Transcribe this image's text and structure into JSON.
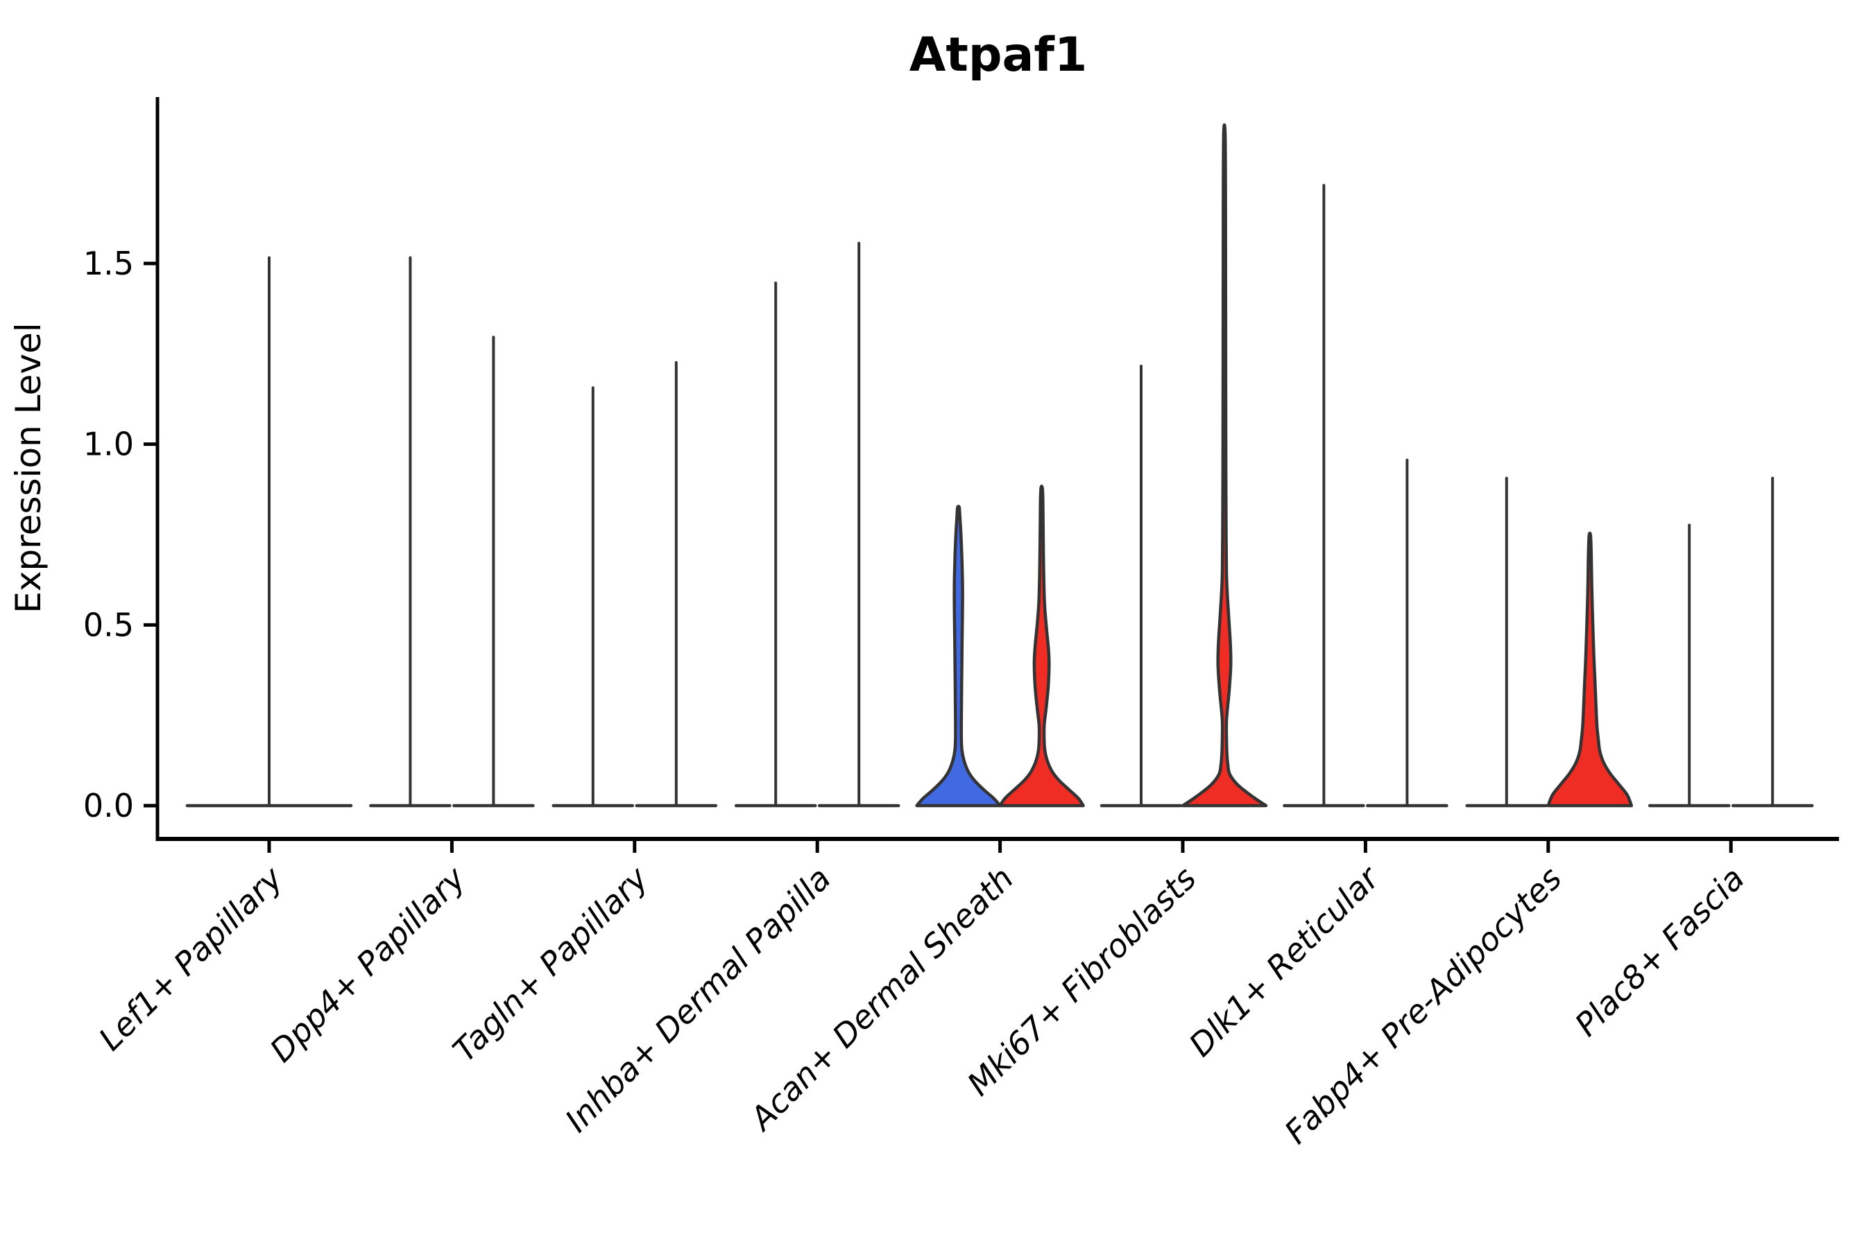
{
  "chart_data": {
    "type": "violin",
    "title": "Atpaf1",
    "xlabel": "",
    "ylabel": "Expression Level",
    "ylim": [
      -0.09,
      1.96
    ],
    "yticks": [
      0.0,
      0.5,
      1.0,
      1.5
    ],
    "ytick_labels": [
      "0.0",
      "0.5",
      "1.0",
      "1.5"
    ],
    "grid": false,
    "legend": null,
    "split_groups": [
      {
        "name": "group-blue",
        "color": "#4169E1"
      },
      {
        "name": "group-red",
        "color": "#EF2D24"
      }
    ],
    "colors": {
      "blue": "#4169E1",
      "red": "#EF2D24",
      "outline": "#333333",
      "axis": "#000000",
      "background": "#FFFFFF"
    },
    "note": "Most violins are degenerate (nearly all cells at 0 expression): a flat base line at 0 plus a thin vertical spike to the max expression value.",
    "categories": [
      {
        "label": "Lef1+ Papillary",
        "violins": [
          {
            "group": "single",
            "style": "line",
            "max": 1.52
          }
        ]
      },
      {
        "label": "Dpp4+ Papillary",
        "violins": [
          {
            "group": "blue",
            "style": "line",
            "max": 1.52
          },
          {
            "group": "red",
            "style": "line",
            "max": 1.3
          }
        ]
      },
      {
        "label": "Tagln+ Papillary",
        "violins": [
          {
            "group": "blue",
            "style": "line",
            "max": 1.16
          },
          {
            "group": "red",
            "style": "line",
            "max": 1.23
          }
        ]
      },
      {
        "label": "Inhba+ Dermal Papilla",
        "violins": [
          {
            "group": "blue",
            "style": "line",
            "max": 1.45
          },
          {
            "group": "red",
            "style": "line",
            "max": 1.56
          }
        ]
      },
      {
        "label": "Acan+ Dermal Sheath",
        "violins": [
          {
            "group": "blue",
            "style": "violin",
            "max": 0.82,
            "profile": [
              [
                0.825,
                0.02
              ],
              [
                0.8,
                0.035
              ],
              [
                0.74,
                0.065
              ],
              [
                0.66,
                0.09
              ],
              [
                0.585,
                0.1
              ],
              [
                0.47,
                0.09
              ],
              [
                0.394,
                0.083
              ],
              [
                0.3,
                0.075
              ],
              [
                0.235,
                0.07
              ],
              [
                0.19,
                0.07
              ],
              [
                0.155,
                0.083
              ],
              [
                0.125,
                0.133
              ],
              [
                0.095,
                0.233
              ],
              [
                0.07,
                0.383
              ],
              [
                0.045,
                0.6
              ],
              [
                0.02,
                0.85
              ],
              [
                0.0,
                1.0
              ]
            ]
          },
          {
            "group": "red",
            "style": "violin",
            "max": 0.88,
            "profile": [
              [
                0.879,
                0.016
              ],
              [
                0.84,
                0.03
              ],
              [
                0.76,
                0.037
              ],
              [
                0.66,
                0.047
              ],
              [
                0.565,
                0.067
              ],
              [
                0.5,
                0.108
              ],
              [
                0.44,
                0.158
              ],
              [
                0.394,
                0.178
              ],
              [
                0.33,
                0.158
              ],
              [
                0.27,
                0.108
              ],
              [
                0.225,
                0.063
              ],
              [
                0.19,
                0.058
              ],
              [
                0.155,
                0.075
              ],
              [
                0.125,
                0.133
              ],
              [
                0.095,
                0.25
              ],
              [
                0.07,
                0.417
              ],
              [
                0.045,
                0.65
              ],
              [
                0.02,
                0.883
              ],
              [
                0.0,
                1.0
              ]
            ]
          }
        ]
      },
      {
        "label": "Mki67+ Fibroblasts",
        "violins": [
          {
            "group": "blue",
            "style": "line",
            "max": 1.22
          },
          {
            "group": "red",
            "style": "violin",
            "max": 1.86,
            "profile": [
              [
                1.863,
                0.016
              ],
              [
                1.7,
                0.027
              ],
              [
                1.4,
                0.03
              ],
              [
                1.1,
                0.033
              ],
              [
                0.9,
                0.037
              ],
              [
                0.75,
                0.042
              ],
              [
                0.645,
                0.05
              ],
              [
                0.575,
                0.075
              ],
              [
                0.5,
                0.117
              ],
              [
                0.44,
                0.147
              ],
              [
                0.387,
                0.153
              ],
              [
                0.32,
                0.117
              ],
              [
                0.27,
                0.075
              ],
              [
                0.234,
                0.05
              ],
              [
                0.19,
                0.05
              ],
              [
                0.15,
                0.058
              ],
              [
                0.113,
                0.083
              ],
              [
                0.086,
                0.133
              ],
              [
                0.056,
                0.333
              ],
              [
                0.023,
                0.7
              ],
              [
                0.0,
                1.0
              ]
            ]
          }
        ]
      },
      {
        "label": "Dlk1+ Reticular",
        "violins": [
          {
            "group": "blue",
            "style": "line",
            "max": 1.72
          },
          {
            "group": "red",
            "style": "line",
            "max": 0.96
          }
        ]
      },
      {
        "label": "Fabp4+ Pre-Adipocytes",
        "violins": [
          {
            "group": "blue",
            "style": "line",
            "max": 0.91
          },
          {
            "group": "red",
            "style": "violin",
            "max": 0.75,
            "profile": [
              [
                0.748,
                0.017
              ],
              [
                0.7,
                0.034
              ],
              [
                0.6,
                0.048
              ],
              [
                0.514,
                0.069
              ],
              [
                0.42,
                0.095
              ],
              [
                0.35,
                0.121
              ],
              [
                0.28,
                0.147
              ],
              [
                0.22,
                0.172
              ],
              [
                0.18,
                0.207
              ],
              [
                0.15,
                0.241
              ],
              [
                0.12,
                0.328
              ],
              [
                0.09,
                0.483
              ],
              [
                0.06,
                0.69
              ],
              [
                0.03,
                0.897
              ],
              [
                0.0,
                1.0
              ]
            ]
          }
        ]
      },
      {
        "label": "Plac8+ Fascia",
        "violins": [
          {
            "group": "blue",
            "style": "line",
            "max": 0.78
          },
          {
            "group": "red",
            "style": "line",
            "max": 0.91
          }
        ]
      }
    ]
  }
}
